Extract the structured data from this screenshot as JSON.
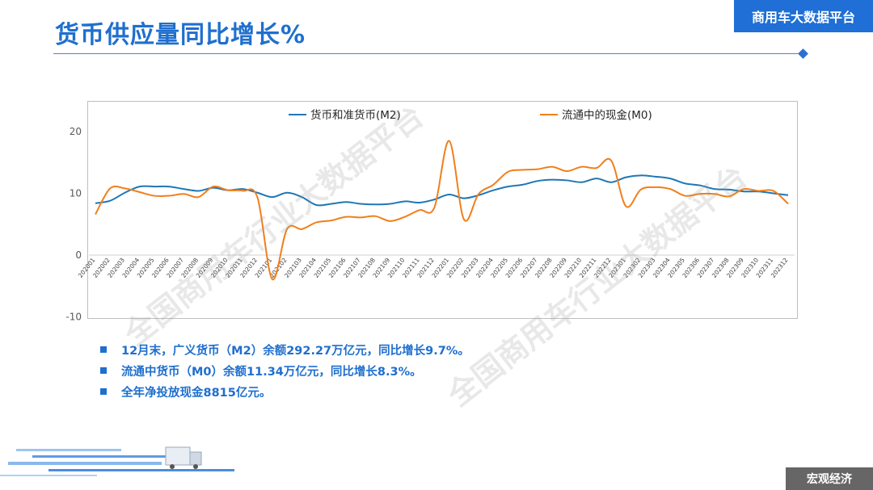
{
  "header": {
    "title": "货币供应量同比增长%",
    "brand": "商用车大数据平台"
  },
  "footer": {
    "section": "宏观经济"
  },
  "watermark": "全国商用车行业大数据平台",
  "bullets": [
    "12月末，广义货币（M2）余额292.27万亿元，同比增长9.7%。",
    "流通中货币（M0）余额11.34万亿元，同比增长8.3%。",
    "全年净投放现金8815亿元。"
  ],
  "colors": {
    "accent": "#1f6fce",
    "m2": "#1f77b4",
    "m0": "#f07f1b"
  },
  "chart_data": {
    "type": "line",
    "categories": [
      "202001",
      "202002",
      "202003",
      "202004",
      "202005",
      "202006",
      "202007",
      "202008",
      "202009",
      "202010",
      "202011",
      "202012",
      "202101",
      "202102",
      "202103",
      "202104",
      "202105",
      "202106",
      "202107",
      "202108",
      "202109",
      "202110",
      "202111",
      "202112",
      "202201",
      "202202",
      "202203",
      "202204",
      "202205",
      "202206",
      "202207",
      "202208",
      "202209",
      "202210",
      "202211",
      "202212",
      "202301",
      "202302",
      "202303",
      "202304",
      "202305",
      "202306",
      "202307",
      "202308",
      "202309",
      "202310",
      "202311",
      "202312"
    ],
    "ylim": [
      -10,
      25
    ],
    "yticks": [
      "-10",
      "0",
      "10",
      "20"
    ],
    "legend_position": "top",
    "grid": false,
    "series": [
      {
        "name": "货币和准货币(M2)",
        "values": [
          8.4,
          8.8,
          10.1,
          11.1,
          11.1,
          11.1,
          10.7,
          10.4,
          10.9,
          10.5,
          10.7,
          10.1,
          9.4,
          10.1,
          9.4,
          8.1,
          8.3,
          8.6,
          8.3,
          8.2,
          8.3,
          8.7,
          8.5,
          9.0,
          9.8,
          9.2,
          9.7,
          10.5,
          11.1,
          11.4,
          12.0,
          12.2,
          12.1,
          11.8,
          12.4,
          11.8,
          12.6,
          12.9,
          12.7,
          12.4,
          11.6,
          11.3,
          10.7,
          10.6,
          10.3,
          10.3,
          10.0,
          9.7
        ]
      },
      {
        "name": "流通中的现金(M0)",
        "values": [
          6.6,
          10.8,
          10.8,
          10.2,
          9.6,
          9.6,
          9.9,
          9.4,
          11.1,
          10.5,
          10.4,
          9.3,
          -3.9,
          4.2,
          4.2,
          5.3,
          5.6,
          6.2,
          6.1,
          6.3,
          5.5,
          6.2,
          7.3,
          7.7,
          18.5,
          5.8,
          9.9,
          11.4,
          13.5,
          13.8,
          13.9,
          14.3,
          13.6,
          14.3,
          14.1,
          15.3,
          7.9,
          10.6,
          11.0,
          10.7,
          9.6,
          9.9,
          9.9,
          9.5,
          10.7,
          10.4,
          10.4,
          8.3
        ]
      }
    ]
  }
}
